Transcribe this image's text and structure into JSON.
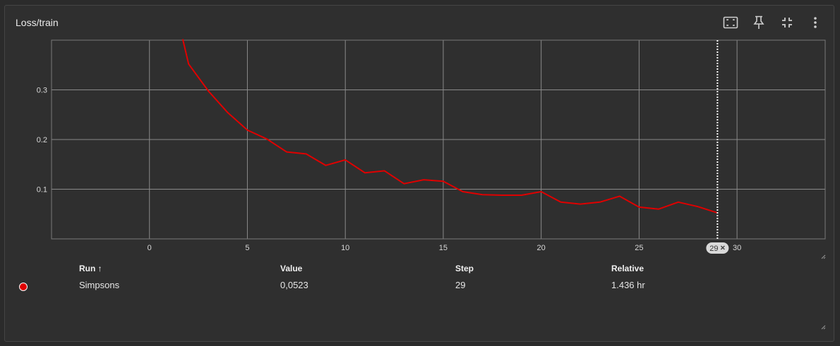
{
  "card": {
    "title": "Loss/train"
  },
  "toolbar": {
    "icons": [
      "fit-domain-icon",
      "pin-icon",
      "collapse-icon",
      "more-vert-icon"
    ]
  },
  "chart_data": {
    "type": "line",
    "title": "Loss/train",
    "xlabel": "",
    "ylabel": "",
    "xlim": [
      -5,
      34.5
    ],
    "ylim": [
      0,
      0.4
    ],
    "x_ticks": [
      0,
      5,
      10,
      15,
      20,
      25,
      30
    ],
    "y_ticks": [
      0.1,
      0.2,
      0.3
    ],
    "grid": true,
    "series": [
      {
        "name": "Simpsons",
        "color": "#e00000",
        "x": [
          1.7,
          2,
          3,
          4,
          5,
          6,
          7,
          8,
          9,
          10,
          11,
          12,
          13,
          14,
          15,
          16,
          17,
          18,
          19,
          20,
          21,
          22,
          23,
          24,
          25,
          26,
          27,
          28,
          29
        ],
        "y": [
          0.402,
          0.352,
          0.298,
          0.254,
          0.219,
          0.201,
          0.175,
          0.171,
          0.148,
          0.159,
          0.133,
          0.137,
          0.111,
          0.119,
          0.116,
          0.095,
          0.089,
          0.088,
          0.088,
          0.095,
          0.074,
          0.07,
          0.074,
          0.086,
          0.064,
          0.06,
          0.074,
          0.065,
          0.0523
        ]
      }
    ],
    "cursor": {
      "step": 29,
      "label": "29"
    }
  },
  "table": {
    "headers": {
      "run": "Run ↑",
      "value": "Value",
      "step": "Step",
      "relative": "Relative"
    },
    "rows": [
      {
        "run": "Simpsons",
        "value": "0,0523",
        "step": "29",
        "relative": "1.436 hr",
        "color": "#e00000"
      }
    ]
  }
}
